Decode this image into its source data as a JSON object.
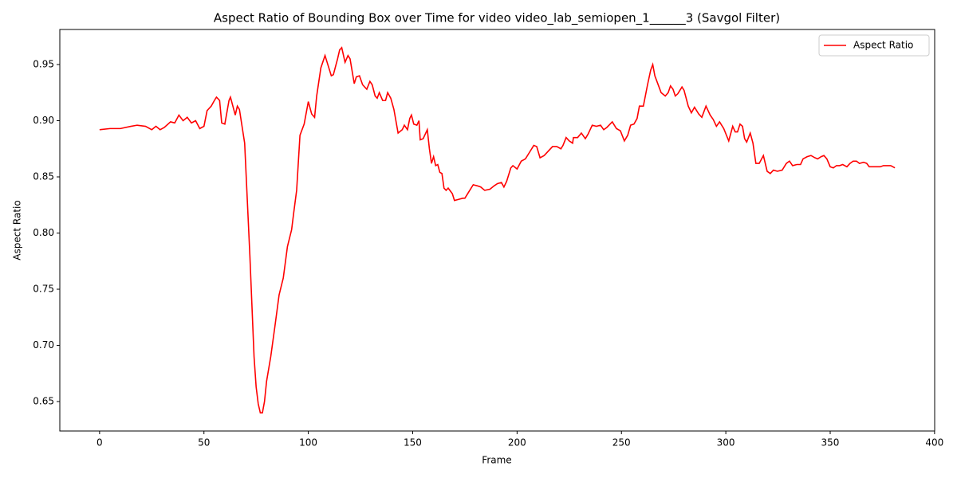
{
  "chart_data": {
    "type": "line",
    "title": "Aspect Ratio of Bounding Box over Time for video video_lab_semiopen_1______3 (Savgol Filter)",
    "x_label": "Frame",
    "y_label": "Aspect Ratio",
    "legend_position": "upper right",
    "grid": false,
    "xlim": [
      -19.05,
      400.05
    ],
    "ylim": [
      0.6238,
      0.9812
    ],
    "xticks": [
      0,
      50,
      100,
      150,
      200,
      250,
      300,
      350,
      400
    ],
    "yticks": [
      0.65,
      {
        "value": 0.7,
        "label": "0.70"
      },
      0.75,
      {
        "value": 0.8,
        "label": "0.80"
      },
      0.85,
      {
        "value": 0.9,
        "label": "0.90"
      },
      0.95
    ],
    "x": [
      0,
      5,
      10,
      15,
      18,
      22,
      25,
      27,
      29,
      31,
      34,
      36,
      38,
      40,
      42,
      44,
      46,
      48,
      50,
      51.5,
      53.5,
      55,
      56,
      57.5,
      58.5,
      60,
      62,
      62.7,
      65,
      66,
      67,
      69.5,
      70,
      72,
      74,
      75,
      76,
      77,
      78,
      79,
      80,
      82,
      84,
      86,
      88,
      90,
      92,
      93,
      94.4,
      96,
      98,
      100,
      101.6,
      103,
      104,
      106,
      108,
      109,
      111,
      112,
      114,
      115,
      116,
      117.6,
      119,
      120,
      122,
      123,
      124.5,
      126,
      128,
      129.5,
      130.6,
      132,
      133,
      134,
      135.6,
      137,
      138,
      139.5,
      141,
      143,
      145,
      146,
      147.5,
      148.6,
      149.4,
      150.5,
      152,
      153,
      153.6,
      155,
      157,
      158,
      159,
      160,
      161,
      162,
      163,
      164,
      165,
      166,
      167,
      169,
      170,
      172,
      174,
      175,
      177,
      179,
      181,
      182.6,
      184.5,
      187,
      189,
      190.6,
      192.5,
      193.7,
      195,
      197,
      198,
      200,
      202,
      204,
      206,
      208,
      209.4,
      211,
      213,
      215,
      217,
      219,
      221,
      222,
      223.5,
      225,
      226.6,
      227,
      229,
      230.8,
      232.7,
      234,
      236,
      238,
      240,
      241.5,
      243,
      245.6,
      247.6,
      249.5,
      251.4,
      253,
      254.4,
      256,
      257.5,
      258.6,
      260.5,
      262.5,
      264,
      265,
      266,
      268,
      269,
      271,
      272.4,
      273.5,
      274.7,
      275.8,
      277,
      279,
      280,
      282,
      283.5,
      285,
      287,
      288.5,
      290.5,
      292.5,
      294,
      295.5,
      297,
      299,
      301.4,
      303.3,
      304.5,
      305.6,
      306.8,
      308,
      309,
      310,
      311.7,
      313,
      314.4,
      316,
      318,
      319.8,
      321.3,
      322.8,
      324.7,
      327,
      329,
      330.5,
      332,
      334,
      335.8,
      337,
      339,
      340.8,
      342.7,
      344,
      345.7,
      347,
      348.4,
      350,
      351.5,
      353,
      354.5,
      356,
      358,
      359.5,
      361,
      362.6,
      364,
      366,
      367.5,
      368.7,
      370.6,
      372.5,
      374,
      375.5,
      377.5,
      379,
      381
    ],
    "series": [
      {
        "name": "Aspect Ratio",
        "color": "#ff0000",
        "values": [
          0.892,
          0.893,
          0.893,
          0.895,
          0.896,
          0.895,
          0.892,
          0.895,
          0.892,
          0.894,
          0.899,
          0.898,
          0.905,
          0.9,
          0.903,
          0.898,
          0.9,
          0.893,
          0.895,
          0.909,
          0.913,
          0.918,
          0.921,
          0.918,
          0.898,
          0.897,
          0.918,
          0.921,
          0.905,
          0.913,
          0.91,
          0.88,
          0.86,
          0.78,
          0.69,
          0.663,
          0.648,
          0.64,
          0.64,
          0.65,
          0.668,
          0.69,
          0.717,
          0.745,
          0.76,
          0.788,
          0.803,
          0.818,
          0.838,
          0.887,
          0.897,
          0.917,
          0.906,
          0.903,
          0.922,
          0.947,
          0.958,
          0.952,
          0.94,
          0.941,
          0.955,
          0.963,
          0.965,
          0.952,
          0.958,
          0.955,
          0.933,
          0.939,
          0.94,
          0.932,
          0.928,
          0.935,
          0.932,
          0.922,
          0.92,
          0.925,
          0.918,
          0.918,
          0.925,
          0.92,
          0.91,
          0.889,
          0.892,
          0.896,
          0.892,
          0.902,
          0.905,
          0.897,
          0.896,
          0.9,
          0.883,
          0.884,
          0.892,
          0.875,
          0.862,
          0.868,
          0.86,
          0.861,
          0.854,
          0.853,
          0.84,
          0.838,
          0.84,
          0.835,
          0.829,
          0.83,
          0.831,
          0.831,
          0.837,
          0.843,
          0.842,
          0.841,
          0.838,
          0.839,
          0.842,
          0.844,
          0.845,
          0.841,
          0.846,
          0.858,
          0.86,
          0.857,
          0.864,
          0.866,
          0.872,
          0.878,
          0.877,
          0.867,
          0.869,
          0.873,
          0.877,
          0.877,
          0.875,
          0.878,
          0.885,
          0.882,
          0.88,
          0.885,
          0.885,
          0.889,
          0.884,
          0.888,
          0.896,
          0.895,
          0.896,
          0.892,
          0.894,
          0.899,
          0.893,
          0.891,
          0.882,
          0.887,
          0.896,
          0.897,
          0.902,
          0.913,
          0.913,
          0.932,
          0.945,
          0.95,
          0.94,
          0.93,
          0.925,
          0.922,
          0.925,
          0.931,
          0.928,
          0.922,
          0.924,
          0.93,
          0.927,
          0.913,
          0.907,
          0.912,
          0.906,
          0.903,
          0.913,
          0.905,
          0.901,
          0.895,
          0.899,
          0.893,
          0.882,
          0.895,
          0.89,
          0.89,
          0.897,
          0.895,
          0.884,
          0.881,
          0.889,
          0.88,
          0.862,
          0.862,
          0.869,
          0.855,
          0.853,
          0.856,
          0.855,
          0.856,
          0.862,
          0.864,
          0.86,
          0.861,
          0.861,
          0.866,
          0.868,
          0.869,
          0.867,
          0.866,
          0.868,
          0.869,
          0.866,
          0.859,
          0.858,
          0.86,
          0.86,
          0.861,
          0.859,
          0.862,
          0.864,
          0.864,
          0.862,
          0.863,
          0.862,
          0.859,
          0.859,
          0.859,
          0.859,
          0.86,
          0.86,
          0.86,
          0.858
        ]
      }
    ]
  }
}
